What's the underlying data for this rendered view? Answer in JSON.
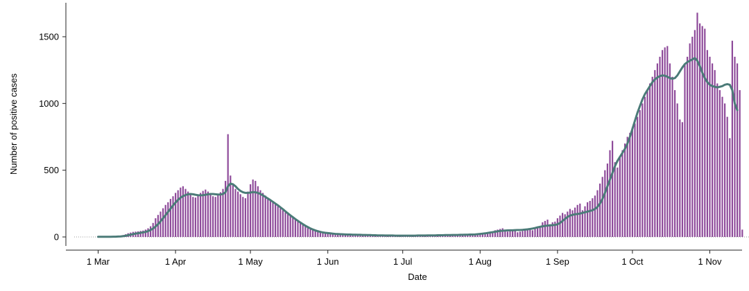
{
  "chart_data": {
    "type": "bar",
    "xlabel": "Date",
    "ylabel": "Number of positive cases",
    "ylim": [
      0,
      1750
    ],
    "y_ticks": [
      0,
      500,
      1000,
      1500
    ],
    "x_ticks": [
      {
        "label": "1 Mar",
        "date": "2020-03-01"
      },
      {
        "label": "1 Apr",
        "date": "2020-04-01"
      },
      {
        "label": "1 May",
        "date": "2020-05-01"
      },
      {
        "label": "1 Jun",
        "date": "2020-06-01"
      },
      {
        "label": "1 Jul",
        "date": "2020-07-01"
      },
      {
        "label": "1 Aug",
        "date": "2020-08-01"
      },
      {
        "label": "1 Sep",
        "date": "2020-09-01"
      },
      {
        "label": "1 Oct",
        "date": "2020-10-01"
      },
      {
        "label": "1 Nov",
        "date": "2020-11-01"
      }
    ],
    "zero_reference_line": true,
    "colors": {
      "bars": "#8e4a9a",
      "line": "#4b7b78",
      "axis": "#222222",
      "zero_line": "#999999"
    },
    "series": [
      {
        "type": "bar",
        "start_date": "2020-03-01",
        "values": [
          1,
          1,
          1,
          1,
          1,
          2,
          2,
          3,
          4,
          8,
          14,
          20,
          28,
          33,
          38,
          40,
          42,
          45,
          48,
          55,
          65,
          80,
          105,
          140,
          165,
          190,
          215,
          240,
          260,
          285,
          305,
          330,
          350,
          370,
          380,
          360,
          340,
          320,
          300,
          295,
          310,
          330,
          345,
          355,
          340,
          320,
          305,
          300,
          315,
          335,
          360,
          420,
          770,
          460,
          400,
          360,
          340,
          320,
          300,
          290,
          340,
          395,
          430,
          420,
          380,
          350,
          330,
          310,
          290,
          280,
          260,
          245,
          230,
          215,
          200,
          185,
          175,
          165,
          150,
          135,
          125,
          115,
          100,
          90,
          75,
          65,
          60,
          55,
          50,
          45,
          40,
          35,
          30,
          28,
          25,
          22,
          20,
          20,
          19,
          18,
          18,
          17,
          17,
          16,
          15,
          15,
          14,
          14,
          13,
          13,
          12,
          12,
          12,
          11,
          11,
          11,
          10,
          10,
          10,
          10,
          10,
          10,
          10,
          10,
          10,
          10,
          11,
          11,
          11,
          11,
          12,
          12,
          12,
          12,
          13,
          13,
          13,
          14,
          14,
          14,
          15,
          15,
          15,
          16,
          16,
          17,
          17,
          18,
          18,
          19,
          19,
          20,
          22,
          24,
          26,
          28,
          30,
          35,
          40,
          50,
          55,
          60,
          65,
          45,
          40,
          45,
          50,
          55,
          35,
          40,
          45,
          55,
          60,
          60,
          50,
          70,
          75,
          80,
          110,
          120,
          130,
          95,
          110,
          115,
          140,
          160,
          180,
          170,
          190,
          210,
          200,
          220,
          240,
          250,
          200,
          230,
          260,
          270,
          290,
          310,
          350,
          400,
          450,
          500,
          550,
          650,
          720,
          560,
          520,
          600,
          650,
          700,
          750,
          780,
          820,
          850,
          900,
          950,
          1000,
          1050,
          1100,
          1150,
          1200,
          1250,
          1300,
          1350,
          1400,
          1420,
          1430,
          1300,
          1200,
          1100,
          1000,
          880,
          860,
          1300,
          1350,
          1450,
          1500,
          1550,
          1680,
          1600,
          1580,
          1560,
          1400,
          1350,
          1300,
          1250,
          1150,
          1100,
          1050,
          1000,
          900,
          740,
          1470,
          1350,
          1300,
          1100,
          55
        ]
      },
      {
        "type": "line",
        "start_date": "2020-03-01",
        "values": [
          1,
          1,
          1,
          1,
          1,
          1,
          2,
          2,
          3,
          4,
          6,
          9,
          13,
          17,
          21,
          25,
          28,
          31,
          34,
          38,
          44,
          52,
          63,
          78,
          96,
          117,
          140,
          164,
          188,
          212,
          236,
          258,
          278,
          294,
          306,
          314,
          320,
          322,
          320,
          316,
          313,
          312,
          313,
          316,
          320,
          322,
          322,
          320,
          318,
          318,
          322,
          335,
          380,
          400,
          395,
          380,
          360,
          345,
          335,
          330,
          330,
          333,
          336,
          335,
          330,
          322,
          312,
          300,
          288,
          276,
          263,
          250,
          237,
          222,
          208,
          192,
          177,
          162,
          148,
          134,
          121,
          108,
          96,
          84,
          74,
          64,
          56,
          49,
          43,
          38,
          34,
          31,
          29,
          27,
          25,
          23,
          22,
          21,
          20,
          19,
          18,
          18,
          17,
          17,
          16,
          16,
          15,
          15,
          14,
          14,
          13,
          13,
          12,
          12,
          12,
          11,
          11,
          11,
          11,
          10,
          10,
          10,
          10,
          10,
          10,
          10,
          10,
          10,
          11,
          11,
          11,
          11,
          12,
          12,
          12,
          12,
          13,
          13,
          13,
          14,
          14,
          14,
          15,
          15,
          15,
          16,
          16,
          17,
          17,
          18,
          18,
          19,
          21,
          23,
          25,
          27,
          30,
          33,
          36,
          39,
          42,
          45,
          47,
          48,
          49,
          50,
          50,
          51,
          52,
          52,
          53,
          55,
          57,
          60,
          63,
          67,
          72,
          76,
          80,
          83,
          85,
          87,
          88,
          90,
          95,
          105,
          120,
          135,
          150,
          160,
          165,
          170,
          172,
          175,
          180,
          185,
          190,
          195,
          200,
          210,
          225,
          250,
          285,
          330,
          380,
          430,
          480,
          530,
          570,
          600,
          630,
          660,
          700,
          750,
          810,
          870,
          930,
          980,
          1030,
          1070,
          1100,
          1130,
          1160,
          1180,
          1195,
          1205,
          1210,
          1208,
          1200,
          1190,
          1185,
          1190,
          1210,
          1240,
          1270,
          1295,
          1310,
          1320,
          1330,
          1340,
          1320,
          1280,
          1230,
          1190,
          1160,
          1140,
          1130,
          1125,
          1120,
          1125,
          1130,
          1140,
          1145,
          1140,
          1100,
          1000,
          950
        ]
      }
    ]
  }
}
